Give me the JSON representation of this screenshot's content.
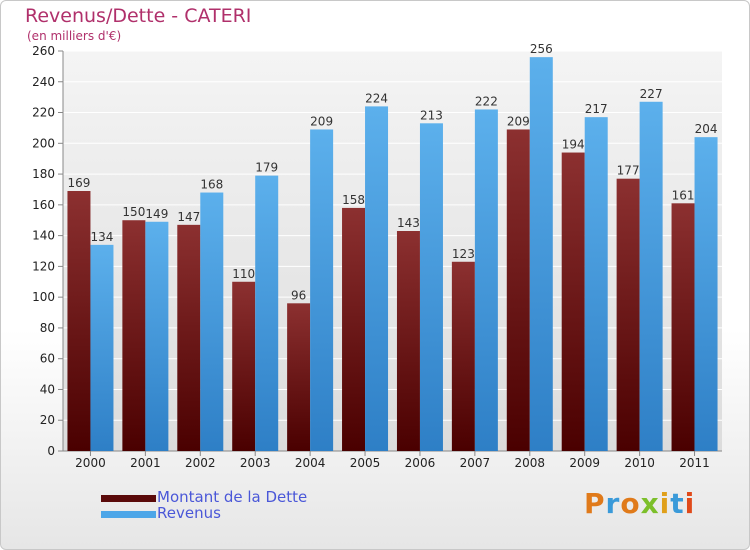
{
  "chart_data": {
    "type": "bar",
    "title": "Revenus/Dette - CATERI",
    "subtitle": "(en milliers d'€)",
    "categories": [
      "2000",
      "2001",
      "2002",
      "2003",
      "2004",
      "2005",
      "2006",
      "2007",
      "2008",
      "2009",
      "2010",
      "2011"
    ],
    "series": [
      {
        "name": "Montant de la Dette",
        "color": "#7a1e1e",
        "values": [
          169,
          150,
          147,
          110,
          96,
          158,
          143,
          123,
          209,
          194,
          177,
          161
        ]
      },
      {
        "name": "Revenus",
        "color": "#4da6e8",
        "values": [
          134,
          149,
          168,
          179,
          209,
          224,
          213,
          222,
          256,
          217,
          227,
          204
        ]
      }
    ],
    "ylim": [
      0,
      260
    ],
    "yticks": [
      0,
      20,
      40,
      60,
      80,
      100,
      120,
      140,
      160,
      180,
      200,
      220,
      240,
      260
    ],
    "grid": true,
    "legend_position": "bottom-left"
  },
  "logo": {
    "text": "Proxiti"
  }
}
